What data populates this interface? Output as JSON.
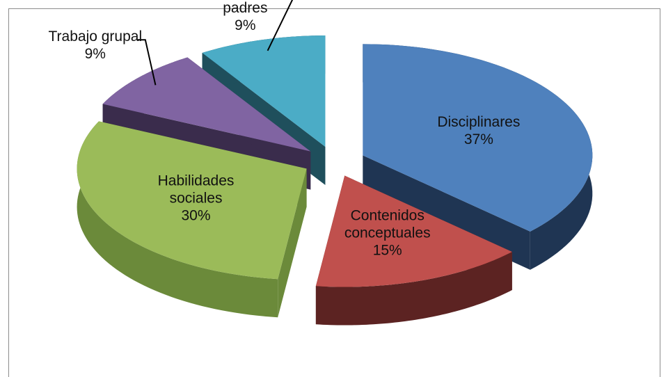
{
  "chart_data": {
    "type": "pie",
    "categories": [
      "Disciplinares",
      "Contenidos conceptuales",
      "Habilidades sociales",
      "Trabajo grupal",
      "Interrelaciones docente-alumno-padres"
    ],
    "values": [
      37,
      15,
      30,
      9,
      9
    ],
    "value_labels": [
      "37%",
      "15%",
      "30%",
      "9%",
      "9%"
    ],
    "colors": [
      "#4f81bd",
      "#c0504d",
      "#9bbb59",
      "#8064a2",
      "#4bacc6"
    ],
    "side_colors": [
      "#1f3553",
      "#5c2322",
      "#6b8a3a",
      "#3a2c4c",
      "#1f4f5c"
    ]
  }
}
